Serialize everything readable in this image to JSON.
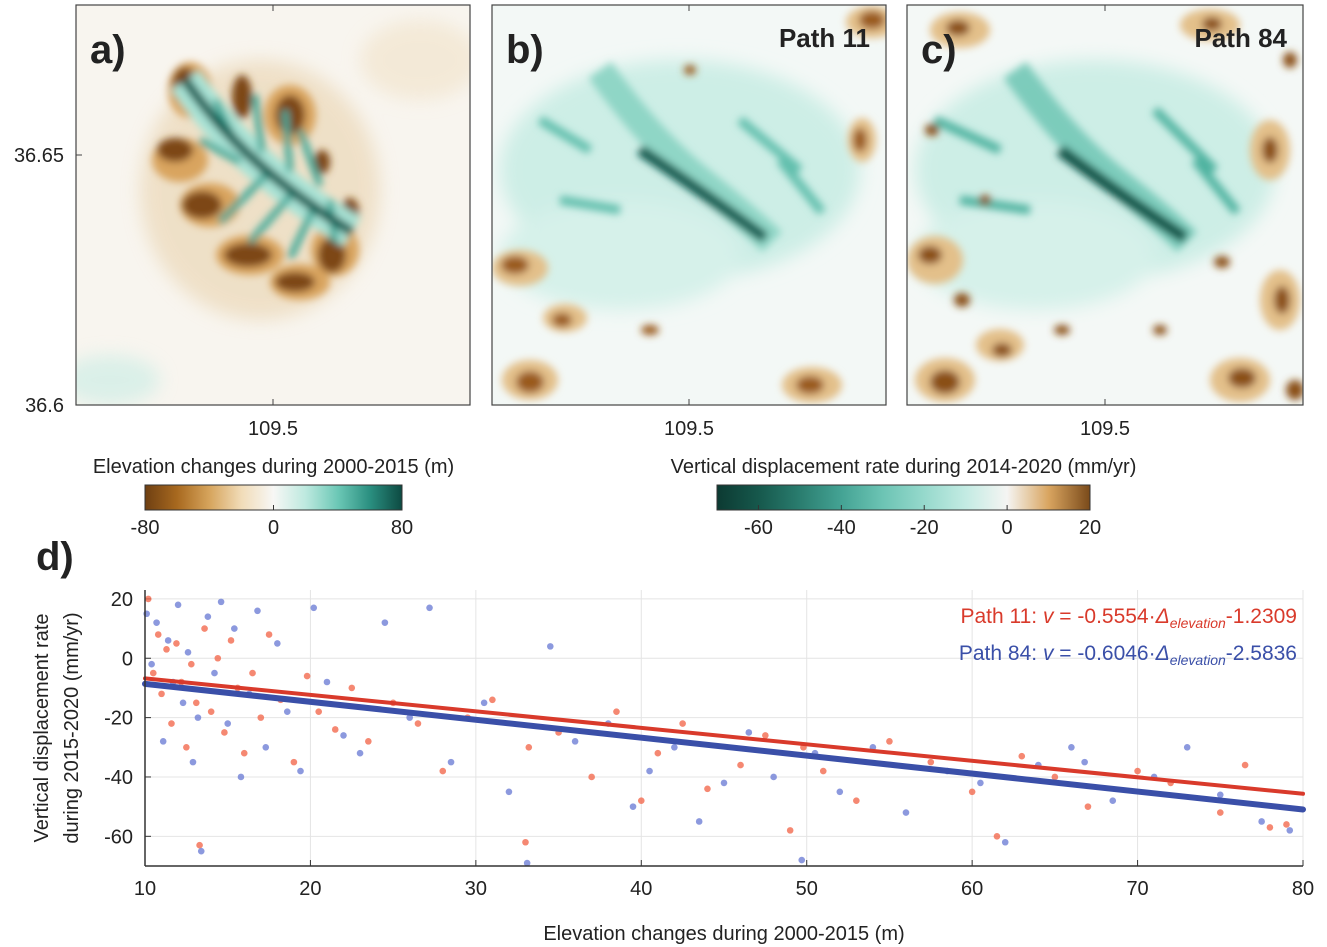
{
  "maps": [
    {
      "label": "a)",
      "xlim": [
        109.45,
        109.55
      ],
      "ylim": [
        36.6,
        36.68
      ],
      "xticks": [
        109.5
      ],
      "yticks": [
        36.6,
        36.65
      ]
    },
    {
      "label": "b)",
      "path": "Path 11",
      "xlim": [
        109.45,
        109.55
      ],
      "ylim": [
        36.6,
        36.68
      ],
      "xticks": [
        109.5
      ]
    },
    {
      "label": "c)",
      "path": "Path 84",
      "xlim": [
        109.45,
        109.55
      ],
      "ylim": [
        36.6,
        36.68
      ],
      "xticks": [
        109.5
      ]
    }
  ],
  "colorbars": [
    {
      "title": "Elevation changes during 2000-2015 (m)",
      "lim": [
        -80,
        80
      ],
      "ticks": [
        -80,
        0,
        80
      ],
      "colors": [
        "#6e3f12",
        "#a8691f",
        "#d6a45c",
        "#f1dcb8",
        "#f7f7f5",
        "#bde9df",
        "#6cc8b6",
        "#2a8f80",
        "#0d4a42"
      ]
    },
    {
      "title": "Vertical displacement rate during 2014-2020 (mm/yr)",
      "lim": [
        -70,
        20
      ],
      "ticks": [
        -60,
        -40,
        -20,
        0,
        20
      ],
      "colors": [
        "#0c3a32",
        "#16584c",
        "#2a7d6f",
        "#44a394",
        "#6cc4b4",
        "#96d9cc",
        "#c3ebe3",
        "#f5f5f3",
        "#d9a560",
        "#7a4a1a"
      ]
    }
  ],
  "chart_data": {
    "type": "scatter",
    "label": "d)",
    "xlabel": "Elevation changes during 2000-2015 (m)",
    "ylabel": [
      "Vertical displacement rate",
      "during 2015-2020 (mm/yr)"
    ],
    "xlim": [
      10,
      80
    ],
    "ylim": [
      -70,
      23
    ],
    "xticks": [
      10,
      20,
      30,
      40,
      50,
      60,
      70,
      80
    ],
    "yticks": [
      -60,
      -40,
      -20,
      0,
      20
    ],
    "grid": true,
    "series": [
      {
        "name": "Path 11",
        "color": "#f26a4f",
        "line_color": "#d93a2b",
        "x": [
          10.2,
          10.5,
          10.8,
          11.0,
          11.3,
          11.6,
          11.9,
          12.2,
          12.5,
          12.8,
          13.1,
          13.3,
          13.6,
          14.0,
          14.4,
          14.8,
          15.2,
          15.6,
          16.0,
          16.5,
          17.0,
          17.5,
          18.2,
          19.0,
          19.8,
          20.5,
          21.5,
          22.5,
          23.5,
          25.0,
          26.5,
          28.0,
          29.5,
          31.0,
          33.0,
          33.2,
          35.0,
          37.0,
          38.5,
          40.0,
          41.0,
          42.5,
          44.0,
          46.0,
          47.5,
          49.0,
          49.8,
          51.0,
          53.0,
          55.0,
          57.5,
          60.0,
          61.5,
          63.0,
          65.0,
          67.0,
          70.0,
          72.0,
          75.0,
          76.5,
          78.0,
          79.0
        ],
        "values": [
          20,
          -5,
          8,
          -12,
          3,
          -22,
          5,
          -8,
          -30,
          -2,
          -15,
          -63,
          10,
          -18,
          0,
          -25,
          6,
          -10,
          -32,
          -5,
          -20,
          8,
          -14,
          -35,
          -6,
          -18,
          -24,
          -10,
          -28,
          -15,
          -22,
          -38,
          -20,
          -14,
          -62,
          -30,
          -25,
          -40,
          -18,
          -48,
          -32,
          -22,
          -44,
          -36,
          -26,
          -58,
          -30,
          -38,
          -48,
          -28,
          -35,
          -45,
          -60,
          -33,
          -40,
          -50,
          -38,
          -42,
          -52,
          -36,
          -57,
          -56
        ],
        "fit": {
          "separator": ": ",
          "variable": "v",
          "equals": " = ",
          "slope": -0.5554,
          "operator": "·",
          "term": "Δ",
          "subscript": "elevation",
          "intercept": -1.2309
        }
      },
      {
        "name": "Path 84",
        "color": "#6f7fd6",
        "line_color": "#3a4fa8",
        "x": [
          10.1,
          10.4,
          10.7,
          11.1,
          11.4,
          11.7,
          12.0,
          12.3,
          12.6,
          12.9,
          13.2,
          13.4,
          13.8,
          14.2,
          14.6,
          15.0,
          15.4,
          15.8,
          16.3,
          16.8,
          17.3,
          18.0,
          18.6,
          19.4,
          20.2,
          21.0,
          22.0,
          23.0,
          24.5,
          26.0,
          27.2,
          28.5,
          30.5,
          32.0,
          33.1,
          34.5,
          36.0,
          38.0,
          39.5,
          40.5,
          42.0,
          43.5,
          45.0,
          46.5,
          48.0,
          49.7,
          50.5,
          52.0,
          54.0,
          56.0,
          58.5,
          60.5,
          62.0,
          64.0,
          66.0,
          66.8,
          68.5,
          71.0,
          73.0,
          75.0,
          77.5,
          79.2
        ],
        "values": [
          15,
          -2,
          12,
          -28,
          6,
          -8,
          18,
          -15,
          2,
          -35,
          -20,
          -65,
          14,
          -5,
          19,
          -22,
          10,
          -40,
          -12,
          16,
          -30,
          5,
          -18,
          -38,
          17,
          -8,
          -26,
          -32,
          12,
          -20,
          17,
          -35,
          -15,
          -45,
          -69,
          4,
          -28,
          -22,
          -50,
          -38,
          -30,
          -55,
          -42,
          -25,
          -40,
          -68,
          -32,
          -45,
          -30,
          -52,
          -38,
          -42,
          -62,
          -36,
          -30,
          -35,
          -48,
          -40,
          -30,
          -46,
          -55,
          -58
        ],
        "fit": {
          "separator": ": ",
          "variable": "v",
          "equals": " = ",
          "slope": -0.6046,
          "operator": "·",
          "term": "Δ",
          "subscript": "elevation",
          "intercept": -2.5836
        }
      }
    ]
  }
}
